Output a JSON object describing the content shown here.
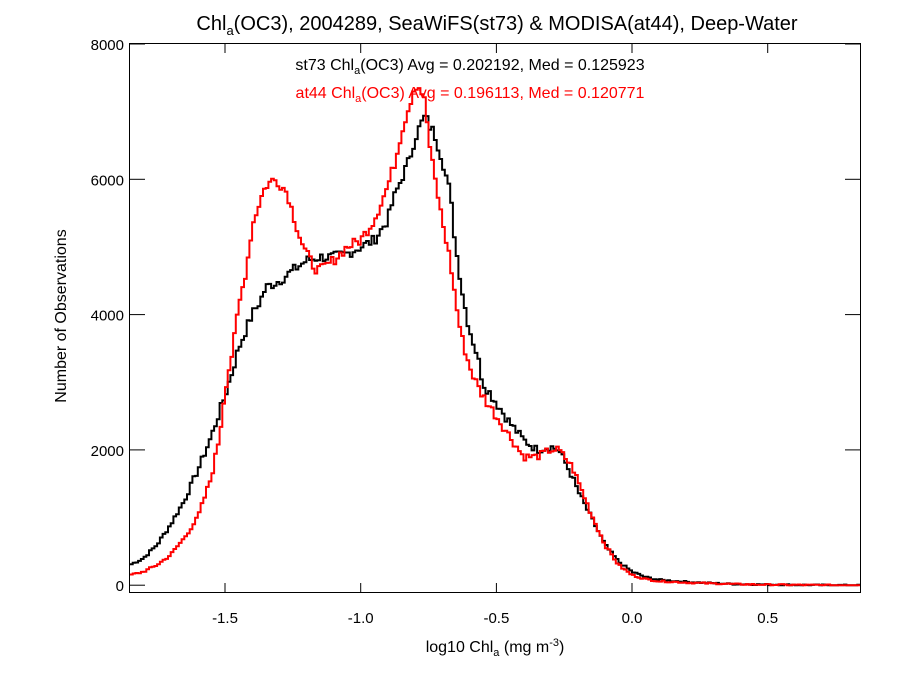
{
  "chart_data": {
    "type": "line",
    "title": {
      "pre": "Chl",
      "sub": "a",
      "post": "(OC3), 2004289, SeaWiFS(st73) & MODISA(at44), Deep-Water"
    },
    "xlabel": {
      "pre": "log10 Chl",
      "sub": "a",
      "mid": " (mg m",
      "sup": "-3",
      "post": ")"
    },
    "ylabel": "Number of Observations",
    "xlim": [
      -1.85,
      0.84
    ],
    "ylim": [
      -100,
      8000
    ],
    "x_ticks": [
      {
        "value": -1.5,
        "label": "-1.5"
      },
      {
        "value": -1.0,
        "label": "-1.0"
      },
      {
        "value": -0.5,
        "label": "-0.5"
      },
      {
        "value": 0.0,
        "label": "0.0"
      },
      {
        "value": 0.5,
        "label": "0.5"
      }
    ],
    "y_ticks": [
      {
        "value": 0,
        "label": "0"
      },
      {
        "value": 2000,
        "label": "2000"
      },
      {
        "value": 4000,
        "label": "4000"
      },
      {
        "value": 6000,
        "label": "6000"
      },
      {
        "value": 8000,
        "label": "8000"
      }
    ],
    "grid": false,
    "annotations": [
      {
        "pre": "st73 Chl",
        "sub": "a",
        "post": "(OC3) Avg = 0.202192, Med = 0.125923",
        "color": "#000000"
      },
      {
        "pre": "at44 Chl",
        "sub": "a",
        "post": "(OC3) Avg = 0.196113, Med = 0.120771",
        "color": "#ff0000"
      }
    ],
    "series": [
      {
        "color": "#000000",
        "x": [
          -1.85,
          -1.8,
          -1.75,
          -1.7,
          -1.65,
          -1.6,
          -1.55,
          -1.5,
          -1.47,
          -1.45,
          -1.42,
          -1.4,
          -1.37,
          -1.35,
          -1.3,
          -1.25,
          -1.2,
          -1.15,
          -1.1,
          -1.05,
          -1.0,
          -0.95,
          -0.9,
          -0.88,
          -0.85,
          -0.82,
          -0.8,
          -0.78,
          -0.76,
          -0.75,
          -0.73,
          -0.7,
          -0.67,
          -0.65,
          -0.62,
          -0.6,
          -0.57,
          -0.55,
          -0.5,
          -0.45,
          -0.4,
          -0.35,
          -0.3,
          -0.27,
          -0.25,
          -0.22,
          -0.2,
          -0.15,
          -0.1,
          -0.05,
          0.0,
          0.05,
          0.1,
          0.2,
          0.3,
          0.4,
          0.5,
          0.6,
          0.7,
          0.84
        ],
        "y": [
          300,
          400,
          600,
          900,
          1250,
          1700,
          2200,
          2800,
          3200,
          3500,
          3800,
          4000,
          4200,
          4400,
          4500,
          4650,
          4800,
          4850,
          4850,
          4900,
          5000,
          5100,
          5400,
          5700,
          6000,
          6300,
          6600,
          6800,
          6950,
          6800,
          6700,
          6300,
          5800,
          5000,
          4200,
          3800,
          3400,
          3000,
          2700,
          2400,
          2150,
          2000,
          2050,
          2000,
          1850,
          1600,
          1400,
          1000,
          600,
          350,
          200,
          120,
          80,
          50,
          30,
          15,
          10,
          5,
          2,
          0
        ]
      },
      {
        "color": "#ff0000",
        "x": [
          -1.85,
          -1.8,
          -1.75,
          -1.7,
          -1.65,
          -1.6,
          -1.55,
          -1.52,
          -1.5,
          -1.47,
          -1.45,
          -1.42,
          -1.4,
          -1.37,
          -1.35,
          -1.32,
          -1.3,
          -1.27,
          -1.25,
          -1.22,
          -1.2,
          -1.17,
          -1.15,
          -1.1,
          -1.05,
          -1.0,
          -0.95,
          -0.9,
          -0.87,
          -0.85,
          -0.82,
          -0.8,
          -0.78,
          -0.76,
          -0.75,
          -0.73,
          -0.7,
          -0.67,
          -0.65,
          -0.63,
          -0.6,
          -0.57,
          -0.55,
          -0.5,
          -0.45,
          -0.4,
          -0.35,
          -0.3,
          -0.27,
          -0.25,
          -0.22,
          -0.2,
          -0.15,
          -0.1,
          -0.05,
          0.0,
          0.05,
          0.1,
          0.2,
          0.3,
          0.4,
          0.5,
          0.6,
          0.7,
          0.84
        ],
        "y": [
          150,
          200,
          300,
          450,
          700,
          1000,
          1600,
          2200,
          2900,
          3500,
          4100,
          4700,
          5300,
          5700,
          5900,
          6000,
          5950,
          5800,
          5500,
          5100,
          4900,
          4700,
          4650,
          4800,
          5000,
          5100,
          5400,
          5900,
          6300,
          6700,
          7100,
          7400,
          7350,
          7100,
          6600,
          6100,
          5400,
          4800,
          4200,
          3700,
          3250,
          2950,
          2800,
          2500,
          2200,
          1900,
          1900,
          2000,
          2000,
          1900,
          1750,
          1550,
          1050,
          600,
          300,
          150,
          90,
          60,
          40,
          25,
          15,
          8,
          5,
          2,
          0
        ]
      }
    ]
  }
}
